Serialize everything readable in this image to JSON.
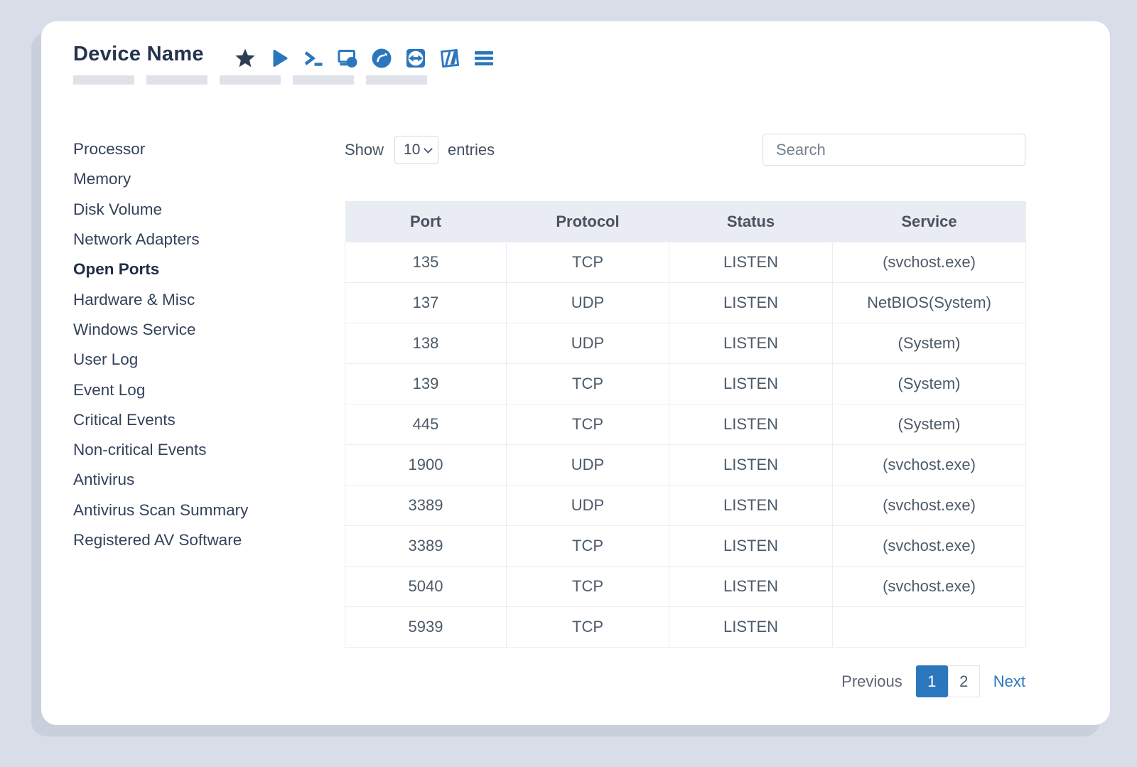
{
  "colors": {
    "accent_blue": "#2b77bd",
    "dark_navy": "#24344d",
    "page_background": "#d8dde8",
    "table_header_background": "#e9ecf2",
    "cell_text": "#4d5a68"
  },
  "card": {
    "title": "Device Name",
    "toolbar_icons": [
      "star-icon",
      "play-icon",
      "terminal-icon",
      "screen-share-icon",
      "remote-session-icon",
      "teamviewer-icon",
      "vendor-logo-icon",
      "menu-icon"
    ],
    "placeholder_bar_count": 5
  },
  "sidebar": {
    "items": [
      {
        "label": "Processor",
        "active": false
      },
      {
        "label": "Memory",
        "active": false
      },
      {
        "label": "Disk Volume",
        "active": false
      },
      {
        "label": "Network Adapters",
        "active": false
      },
      {
        "label": "Open Ports",
        "active": true
      },
      {
        "label": "Hardware & Misc",
        "active": false
      },
      {
        "label": "Windows Service",
        "active": false
      },
      {
        "label": "User Log",
        "active": false
      },
      {
        "label": "Event Log",
        "active": false
      },
      {
        "label": "Critical Events",
        "active": false
      },
      {
        "label": "Non-critical Events",
        "active": false
      },
      {
        "label": "Antivirus",
        "active": false
      },
      {
        "label": "Antivirus Scan Summary",
        "active": false
      },
      {
        "label": "Registered AV Software",
        "active": false
      }
    ]
  },
  "controls": {
    "show_label": "Show",
    "entries_label": "entries",
    "page_size_value": "10",
    "search_placeholder": "Search"
  },
  "table": {
    "columns": [
      "Port",
      "Protocol",
      "Status",
      "Service"
    ],
    "rows": [
      [
        "135",
        "TCP",
        "LISTEN",
        "(svchost.exe)"
      ],
      [
        "137",
        "UDP",
        "LISTEN",
        "NetBIOS(System)"
      ],
      [
        "138",
        "UDP",
        "LISTEN",
        "(System)"
      ],
      [
        "139",
        "TCP",
        "LISTEN",
        "(System)"
      ],
      [
        "445",
        "TCP",
        "LISTEN",
        "(System)"
      ],
      [
        "1900",
        "UDP",
        "LISTEN",
        "(svchost.exe)"
      ],
      [
        "3389",
        "UDP",
        "LISTEN",
        "(svchost.exe)"
      ],
      [
        "3389",
        "TCP",
        "LISTEN",
        "(svchost.exe)"
      ],
      [
        "5040",
        "TCP",
        "LISTEN",
        "(svchost.exe)"
      ],
      [
        "5939",
        "TCP",
        "LISTEN",
        ""
      ]
    ]
  },
  "pagination": {
    "previous_label": "Previous",
    "pages": [
      {
        "label": "1",
        "active": true
      },
      {
        "label": "2",
        "active": false
      }
    ],
    "next_label": "Next"
  }
}
